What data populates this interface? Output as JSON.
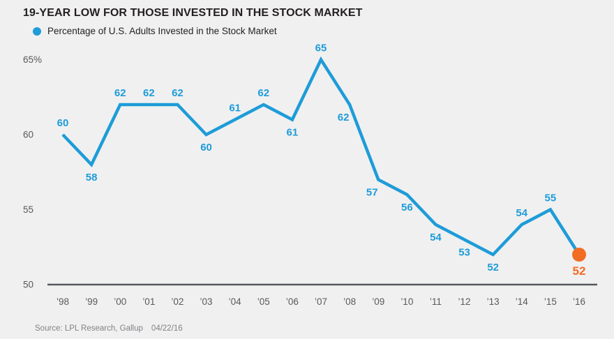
{
  "title": "19-YEAR LOW FOR THOSE INVESTED IN THE STOCK MARKET",
  "legend": {
    "label": "Percentage of U.S. Adults Invested in the Stock Market"
  },
  "source": {
    "text": "Source: LPL Research, Gallup",
    "date": "04/22/16"
  },
  "colors": {
    "line": "#1E9CD8",
    "highlight": "#F26C21",
    "title_text": "#231F20",
    "axis": "#55575C",
    "tick": "#58595B",
    "source_text": "#808285",
    "background": "#F0F0F1"
  },
  "chart_data": {
    "type": "line",
    "title": "19-YEAR LOW FOR THOSE INVESTED IN THE STOCK MARKET",
    "legend_entries": [
      "Percentage of U.S. Adults Invested in the Stock Market"
    ],
    "categories": [
      "’98",
      "’99",
      "’00",
      "’01",
      "’02",
      "’03",
      "’04",
      "’05",
      "’06",
      "’07",
      "’08",
      "’09",
      "’10",
      "’11",
      "’12",
      "’13",
      "’14",
      "’15",
      "’16"
    ],
    "values": [
      60,
      58,
      62,
      62,
      62,
      60,
      61,
      62,
      61,
      65,
      62,
      57,
      56,
      54,
      53,
      52,
      54,
      55,
      52
    ],
    "label_positions": [
      "above",
      "below",
      "above",
      "above",
      "above",
      "below",
      "above",
      "above",
      "below",
      "above",
      "below-left",
      "below-left",
      "below",
      "below",
      "below",
      "below",
      "above",
      "above",
      "below"
    ],
    "highlight_last_point": true,
    "y_ticks": [
      {
        "label": "65%",
        "value": 65
      },
      {
        "label": "60",
        "value": 60
      },
      {
        "label": "55",
        "value": 55
      },
      {
        "label": "50",
        "value": 50
      }
    ],
    "xlabel": "",
    "ylabel": "",
    "ylim": [
      50,
      66.5
    ],
    "grid": false,
    "legend_position": "top-left"
  }
}
